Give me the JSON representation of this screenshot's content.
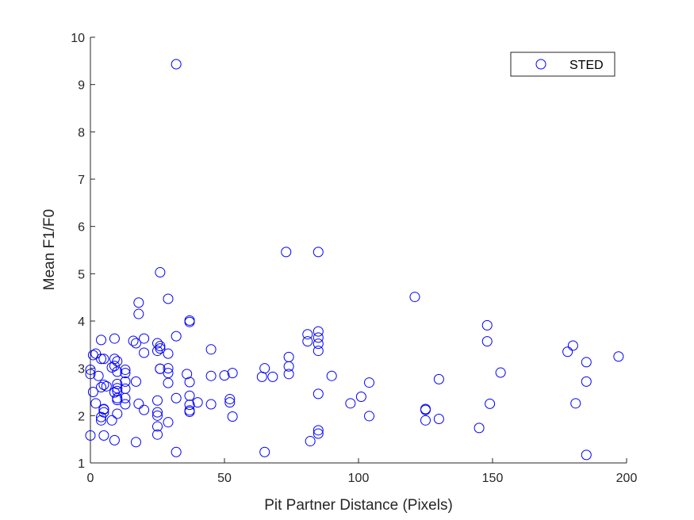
{
  "chart_data": {
    "type": "scatter",
    "title": "",
    "xlabel": "Pit Partner Distance (Pixels)",
    "ylabel": "Mean F1/F0",
    "xlim": [
      0,
      200
    ],
    "ylim": [
      1,
      10
    ],
    "xticks": [
      0,
      50,
      100,
      150,
      200
    ],
    "yticks": [
      1,
      2,
      3,
      4,
      5,
      6,
      7,
      8,
      9,
      10
    ],
    "grid": false,
    "box": false,
    "legend_position": "top-right",
    "series": [
      {
        "name": "STED",
        "color": "#0000ff",
        "marker": "open-circle",
        "x": [
          0,
          0,
          0,
          1,
          1,
          2,
          2,
          3,
          4,
          4,
          4,
          4,
          4,
          5,
          5,
          5,
          5,
          5,
          5,
          6,
          8,
          8,
          9,
          9,
          9,
          9,
          9,
          10,
          10,
          10,
          10,
          10,
          10,
          10,
          10,
          13,
          13,
          13,
          13,
          13,
          13,
          16,
          17,
          17,
          17,
          18,
          18,
          18,
          20,
          20,
          20,
          25,
          25,
          25,
          25,
          25,
          25,
          25,
          26,
          26,
          26,
          26,
          26,
          29,
          29,
          29,
          29,
          29,
          29,
          32,
          32,
          32,
          32,
          36,
          37,
          37,
          37,
          37,
          37,
          37,
          37,
          40,
          45,
          45,
          45,
          50,
          52,
          52,
          53,
          53,
          64,
          65,
          65,
          68,
          73,
          74,
          74,
          74,
          81,
          81,
          82,
          85,
          85,
          85,
          85,
          85,
          85,
          85,
          85,
          90,
          97,
          101,
          104,
          104,
          121,
          125,
          125,
          125,
          130,
          130,
          145,
          148,
          148,
          149,
          153,
          178,
          180,
          181,
          185,
          185,
          185,
          197
        ],
        "y": [
          1.58,
          2.88,
          2.97,
          2.5,
          3.28,
          3.31,
          2.26,
          2.84,
          3.6,
          3.2,
          2.6,
          1.9,
          1.97,
          3.2,
          2.65,
          2.14,
          2.13,
          2.07,
          1.58,
          2.62,
          1.9,
          3.02,
          3.63,
          3.2,
          3.05,
          2.49,
          1.48,
          3.15,
          2.93,
          2.67,
          2.58,
          2.52,
          2.37,
          2.33,
          2.04,
          2.97,
          2.9,
          2.72,
          2.57,
          2.37,
          2.24,
          3.58,
          3.53,
          2.72,
          1.44,
          4.39,
          4.15,
          2.25,
          3.63,
          3.33,
          2.12,
          3.53,
          3.37,
          2.32,
          2.07,
          2.0,
          1.77,
          1.6,
          5.03,
          3.47,
          3.42,
          2.99,
          2.99,
          4.47,
          3.31,
          3.0,
          2.9,
          2.69,
          1.86,
          9.43,
          3.68,
          2.37,
          1.23,
          2.88,
          4.01,
          3.98,
          2.71,
          2.42,
          2.23,
          2.11,
          2.08,
          2.28,
          3.4,
          2.84,
          2.24,
          2.85,
          2.35,
          2.28,
          2.9,
          1.98,
          2.82,
          3.0,
          1.23,
          2.82,
          5.46,
          3.24,
          3.04,
          2.88,
          3.72,
          3.57,
          1.46,
          5.46,
          3.78,
          3.65,
          3.52,
          3.37,
          2.46,
          1.69,
          1.62,
          2.84,
          2.26,
          2.4,
          2.7,
          1.99,
          4.51,
          2.14,
          2.12,
          1.9,
          2.77,
          1.93,
          1.74,
          3.91,
          3.57,
          2.25,
          2.91,
          3.35,
          3.48,
          2.26,
          3.13,
          2.72,
          1.17,
          3.25
        ]
      }
    ]
  }
}
